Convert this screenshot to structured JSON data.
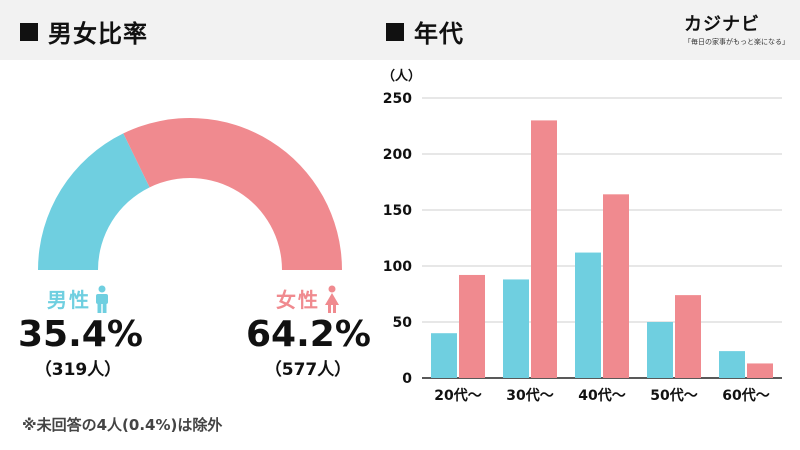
{
  "left": {
    "title": "男女比率",
    "male": {
      "label": "男性",
      "pct_text": "35.4%",
      "count_text": "（319人）",
      "value": 35.4,
      "color": "#6fcfe0"
    },
    "female": {
      "label": "女性",
      "pct_text": "64.2%",
      "count_text": "（577人）",
      "value": 64.2,
      "color": "#f08a8f"
    },
    "footnote": "※未回答の4人(0.4%)は除外",
    "icons": [
      "male-icon",
      "female-icon"
    ]
  },
  "right": {
    "title": "年代"
  },
  "logo": {
    "main": "カジナビ",
    "sub": "「毎日の家事がもっと楽になる」"
  },
  "chart_data": [
    {
      "type": "pie",
      "title": "男女比率",
      "categories": [
        "男性",
        "女性"
      ],
      "values": [
        35.4,
        64.2
      ],
      "colors": [
        "#6fcfe0",
        "#f08a8f"
      ]
    },
    {
      "type": "bar",
      "title": "年代",
      "ylabel": "（人）",
      "categories": [
        "20代〜",
        "30代〜",
        "40代〜",
        "50代〜",
        "60代〜"
      ],
      "series": [
        {
          "values": [
            40,
            88,
            112,
            50,
            24
          ],
          "color": "#6fcfe0"
        },
        {
          "values": [
            92,
            230,
            164,
            74,
            13
          ],
          "color": "#f08a8f"
        }
      ],
      "ylim": [
        0,
        250
      ],
      "yticks": [
        "0",
        "50",
        "100",
        "150",
        "200",
        "250"
      ],
      "grid": true
    }
  ]
}
